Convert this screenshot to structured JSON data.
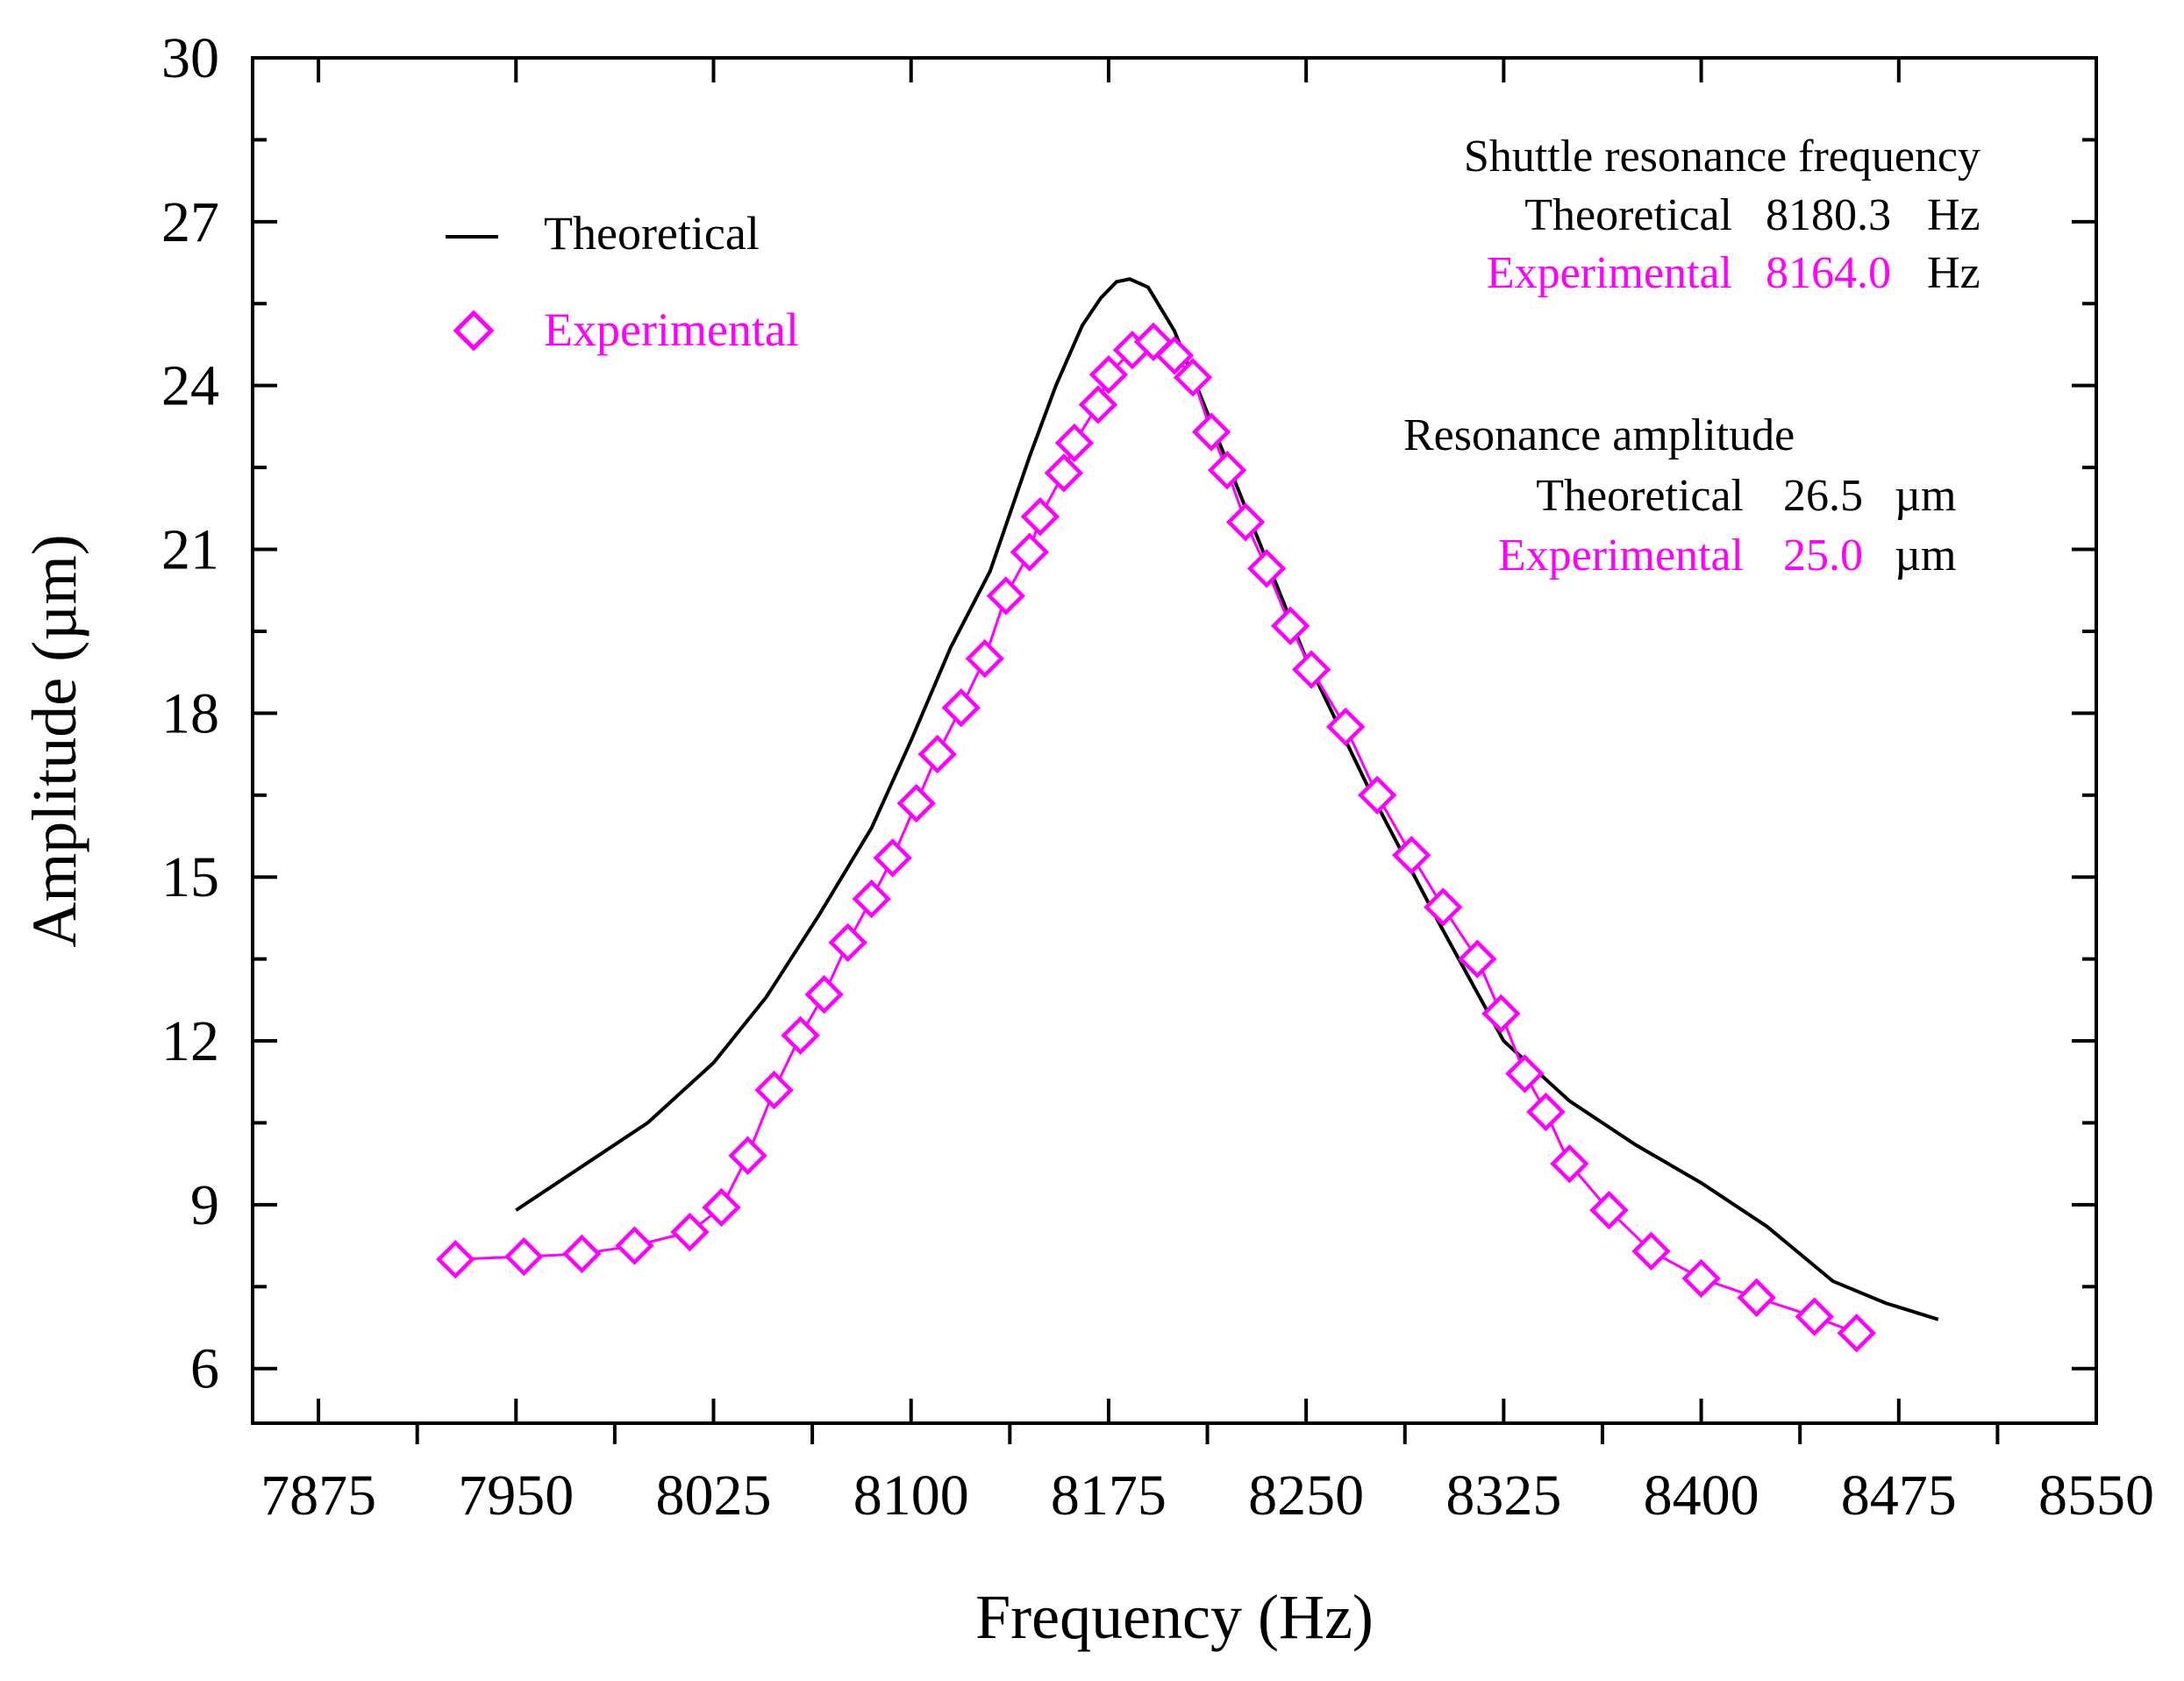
{
  "chart_data": {
    "type": "line",
    "xlabel": "Frequency (Hz)",
    "ylabel": "Amplitude (µm)",
    "xlim": [
      7850,
      8550
    ],
    "ylim": [
      5,
      30
    ],
    "xticks": [
      7875,
      7950,
      8025,
      8100,
      8175,
      8250,
      8325,
      8400,
      8475,
      8550
    ],
    "yticks": [
      6,
      9,
      12,
      15,
      18,
      21,
      24,
      27,
      30
    ],
    "grid": false,
    "legend_position": "top-left",
    "colors": {
      "theoretical": "#000000",
      "experimental": "#ff00ff"
    },
    "series": [
      {
        "name": "Theoretical",
        "style": "solid-line",
        "x": [
          7950,
          7975,
          8000,
          8025,
          8045,
          8065,
          8085,
          8100,
          8115,
          8130,
          8145,
          8155,
          8165,
          8172,
          8178,
          8183,
          8190,
          8200,
          8215,
          8230,
          8250,
          8275,
          8300,
          8325,
          8350,
          8375,
          8400,
          8425,
          8450,
          8470,
          8490
        ],
        "y": [
          8.9,
          9.7,
          10.5,
          11.6,
          12.8,
          14.3,
          15.9,
          17.5,
          19.2,
          20.6,
          22.7,
          24.0,
          25.1,
          25.6,
          25.9,
          25.95,
          25.8,
          25.0,
          23.2,
          21.4,
          19.0,
          16.5,
          14.2,
          12.0,
          10.9,
          10.1,
          9.4,
          8.6,
          7.6,
          7.2,
          6.9
        ]
      },
      {
        "name": "Experimental",
        "style": "line-with-open-diamonds",
        "x": [
          7927,
          7953,
          7975,
          7995,
          8016,
          8028,
          8038,
          8048,
          8058,
          8067,
          8076,
          8085,
          8093,
          8102,
          8110,
          8119,
          8128,
          8136,
          8145,
          8149,
          8158,
          8162,
          8171,
          8175,
          8184,
          8192,
          8200,
          8207,
          8214,
          8220,
          8227,
          8235,
          8244,
          8252,
          8265,
          8277,
          8290,
          8302,
          8315,
          8324,
          8333,
          8341,
          8350,
          8365,
          8381,
          8400,
          8421,
          8443,
          8459
        ],
        "y": [
          8.0,
          8.05,
          8.1,
          8.25,
          8.5,
          8.95,
          9.9,
          11.1,
          12.1,
          12.85,
          13.8,
          14.6,
          15.35,
          16.35,
          17.25,
          18.1,
          19.0,
          20.15,
          20.95,
          21.6,
          22.4,
          22.95,
          23.65,
          24.2,
          24.65,
          24.8,
          24.55,
          24.15,
          23.15,
          22.45,
          21.5,
          20.65,
          19.6,
          18.8,
          17.75,
          16.5,
          15.4,
          14.45,
          13.5,
          12.5,
          11.4,
          10.7,
          9.75,
          8.9,
          8.15,
          7.65,
          7.3,
          6.95,
          6.65
        ]
      }
    ],
    "legend": [
      "Theoretical",
      "Experimental"
    ],
    "annotations": {
      "freq_header": "Shuttle resonance frequency",
      "freq_theo_label": "Theoretical",
      "freq_theo_value": "8180.3",
      "freq_theo_unit": "Hz",
      "freq_exp_label": "Experimental",
      "freq_exp_value": "8164.0",
      "freq_exp_unit": "Hz",
      "amp_header": "Resonance amplitude",
      "amp_theo_label": "Theoretical",
      "amp_theo_value": "26.5",
      "amp_theo_unit": "µm",
      "amp_exp_label": "Experimental",
      "amp_exp_value": "25.0",
      "amp_exp_unit": "µm"
    }
  }
}
